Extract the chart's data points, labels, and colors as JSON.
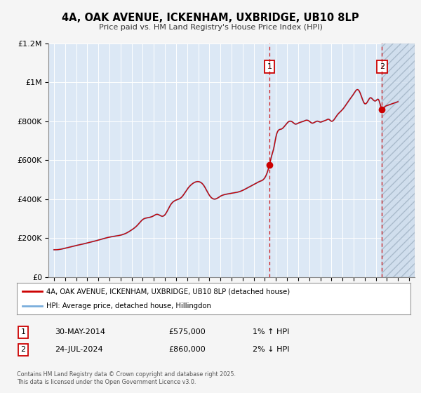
{
  "title": "4A, OAK AVENUE, ICKENHAM, UXBRIDGE, UB10 8LP",
  "subtitle": "Price paid vs. HM Land Registry's House Price Index (HPI)",
  "background_color": "#f5f5f5",
  "plot_bg_color": "#dce8f5",
  "hpi_line_color": "#7aaedc",
  "price_line_color": "#cc0000",
  "marker1_date": 2014.41,
  "marker2_date": 2024.56,
  "marker1_price": 575000,
  "marker2_price": 860000,
  "legend_entry1": "4A, OAK AVENUE, ICKENHAM, UXBRIDGE, UB10 8LP (detached house)",
  "legend_entry2": "HPI: Average price, detached house, Hillingdon",
  "table_row1": [
    "1",
    "30-MAY-2014",
    "£575,000",
    "1% ↑ HPI"
  ],
  "table_row2": [
    "2",
    "24-JUL-2024",
    "£860,000",
    "2% ↓ HPI"
  ],
  "footnote1": "Contains HM Land Registry data © Crown copyright and database right 2025.",
  "footnote2": "This data is licensed under the Open Government Licence v3.0.",
  "ylim": [
    0,
    1200000
  ],
  "xlim_start": 1994.5,
  "xlim_end": 2027.5,
  "hatch_start": 2024.56,
  "hatch_end": 2027.5,
  "hatch_color": "#b0c8e0"
}
